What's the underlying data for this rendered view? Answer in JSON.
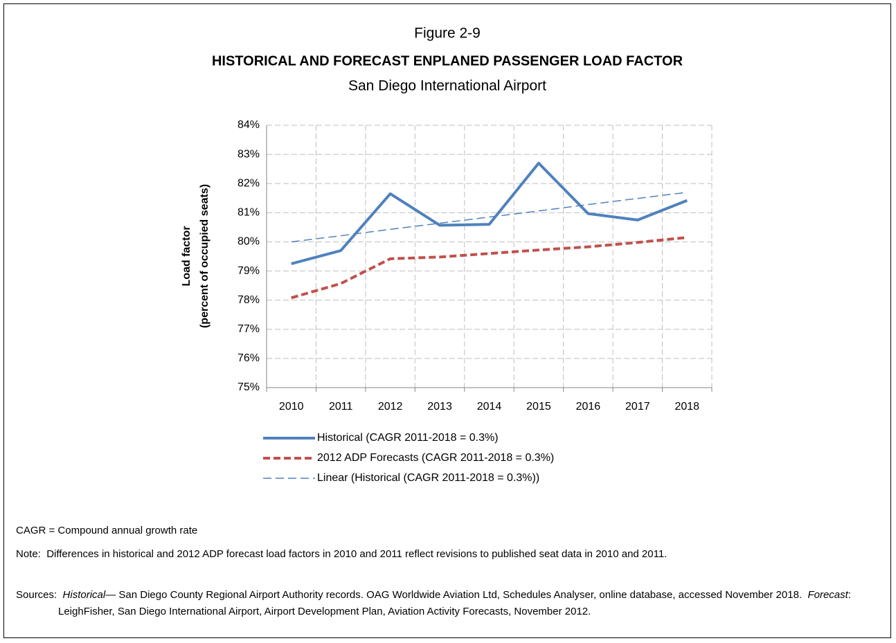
{
  "chart_data": {
    "type": "line",
    "figure_label": "Figure 2-9",
    "title": "HISTORICAL AND FORECAST ENPLANED PASSENGER LOAD FACTOR",
    "subtitle": "San Diego International Airport",
    "y_label": [
      "Load factor",
      "(percent of occupied seats)"
    ],
    "categories": [
      "2010",
      "2011",
      "2012",
      "2013",
      "2014",
      "2015",
      "2016",
      "2017",
      "2018"
    ],
    "series": [
      {
        "name": "Historical (CAGR 2011-2018 = 0.3%)",
        "color": "#4f81bd",
        "style": "solid",
        "values": [
          79.25,
          79.7,
          81.65,
          80.57,
          80.6,
          82.7,
          80.97,
          80.75,
          81.42
        ]
      },
      {
        "name": "2012 ADP Forecasts (CAGR 2011-2018 = 0.3%)",
        "color": "#c0504d",
        "style": "dash",
        "values": [
          78.08,
          78.57,
          79.42,
          79.48,
          79.6,
          79.72,
          79.83,
          79.98,
          80.15
        ]
      },
      {
        "name": "Linear (Historical (CAGR 2011-2018 = 0.3%))",
        "color": "#4f81bd",
        "style": "thin-dash",
        "values": [
          80.0,
          80.21,
          80.43,
          80.64,
          80.85,
          81.06,
          81.28,
          81.49,
          81.7
        ]
      }
    ],
    "ylim": [
      75,
      84
    ],
    "yticks": [
      {
        "value": 75,
        "label": "75%"
      },
      {
        "value": 76,
        "label": "76%"
      },
      {
        "value": 77,
        "label": "77%"
      },
      {
        "value": 78,
        "label": "78%"
      },
      {
        "value": 79,
        "label": "79%"
      },
      {
        "value": 80,
        "label": "80%"
      },
      {
        "value": 81,
        "label": "81%"
      },
      {
        "value": 82,
        "label": "82%"
      },
      {
        "value": 83,
        "label": "83%"
      },
      {
        "value": 84,
        "label": "84%"
      }
    ],
    "grid": true,
    "legend": "bottom"
  },
  "notes": {
    "cagr": "CAGR = Compound annual growth rate",
    "note_label": "Note:",
    "note": "Differences in historical and 2012 ADP forecast load factors in 2010 and 2011 reflect revisions to published seat data in 2010 and 2011.",
    "sources_label": "Sources:",
    "sources_1": "Historical",
    "sources_2": "— San Diego County Regional Airport Authority records.  OAG Worldwide Aviation Ltd, Schedules Analyser, online database, accessed November 2018.",
    "sources_3": "Forecast",
    "sources_4": ":  LeighFisher, San Diego International Airport, Airport Development Plan, Aviation Activity Forecasts, November 2012."
  }
}
